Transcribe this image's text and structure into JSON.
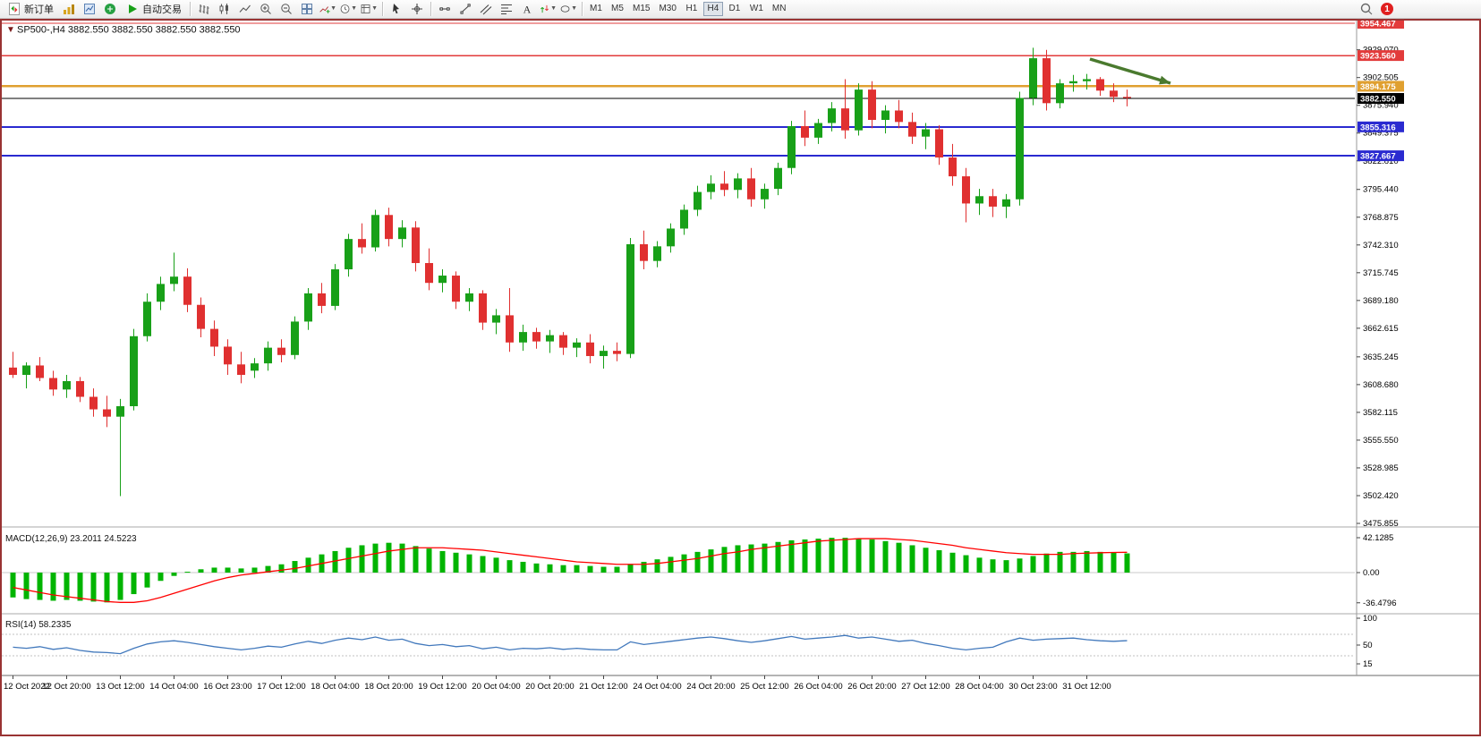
{
  "toolbar": {
    "new_order_label": "新订单",
    "auto_trading_label": "自动交易",
    "timeframes": [
      "M1",
      "M5",
      "M15",
      "M30",
      "H1",
      "H4",
      "D1",
      "W1",
      "MN"
    ],
    "active_timeframe": "H4",
    "notification_count": "1"
  },
  "chart": {
    "symbol": "SP500-",
    "period": "H4",
    "dropdown_glyph": "▼",
    "title_line": "SP500-,H4 3882.550 3882.550 3882.550 3882.550"
  },
  "chart_data": {
    "type": "candlestick",
    "symbol": "SP500-",
    "timeframe": "H4",
    "ohlc_current": {
      "open": 3882.55,
      "high": 3882.55,
      "low": 3882.55,
      "close": 3882.55
    },
    "colors": {
      "up": "#18a018",
      "down": "#e03030",
      "background": "#ffffff",
      "scale_text": "#000000"
    },
    "y_axis_labels": [
      3929.07,
      3902.505,
      3875.94,
      3849.375,
      3822.81,
      3795.44,
      3768.875,
      3742.31,
      3715.745,
      3689.18,
      3662.615,
      3635.245,
      3608.68,
      3582.115,
      3555.55,
      3528.985,
      3502.42,
      3475.855
    ],
    "horizontal_lines": [
      {
        "price": 3954.467,
        "color": "#e23b3b",
        "width": 1.4,
        "badge": true
      },
      {
        "price": 3923.56,
        "color": "#e23b3b",
        "width": 1.4,
        "badge": true
      },
      {
        "price": 3894.175,
        "color": "#e0a030",
        "width": 2.4,
        "badge": true
      },
      {
        "price": 3855.316,
        "color": "#2a2ad0",
        "width": 2,
        "badge": true
      },
      {
        "price": 3827.667,
        "color": "#2a2ad0",
        "width": 2,
        "badge": true
      },
      {
        "price": 3882.55,
        "color": "#000000",
        "width": 1.2,
        "badge": true,
        "current_price": true
      }
    ],
    "candles_ohlc": [
      [
        3625,
        3640,
        3615,
        3618
      ],
      [
        3618,
        3630,
        3605,
        3627
      ],
      [
        3627,
        3635,
        3612,
        3615
      ],
      [
        3615,
        3622,
        3598,
        3604
      ],
      [
        3604,
        3618,
        3596,
        3612
      ],
      [
        3612,
        3616,
        3592,
        3597
      ],
      [
        3597,
        3605,
        3578,
        3585
      ],
      [
        3585,
        3598,
        3568,
        3578
      ],
      [
        3578,
        3595,
        3502,
        3588
      ],
      [
        3588,
        3662,
        3584,
        3655
      ],
      [
        3655,
        3696,
        3650,
        3688
      ],
      [
        3688,
        3712,
        3680,
        3705
      ],
      [
        3705,
        3735,
        3698,
        3712
      ],
      [
        3712,
        3720,
        3678,
        3685
      ],
      [
        3685,
        3692,
        3654,
        3662
      ],
      [
        3662,
        3670,
        3636,
        3645
      ],
      [
        3645,
        3652,
        3618,
        3628
      ],
      [
        3628,
        3640,
        3610,
        3618
      ],
      [
        3622,
        3634,
        3615,
        3629
      ],
      [
        3629,
        3650,
        3622,
        3644
      ],
      [
        3644,
        3652,
        3630,
        3637
      ],
      [
        3637,
        3674,
        3633,
        3669
      ],
      [
        3669,
        3701,
        3661,
        3696
      ],
      [
        3696,
        3706,
        3677,
        3684
      ],
      [
        3684,
        3724,
        3680,
        3719
      ],
      [
        3719,
        3753,
        3712,
        3748
      ],
      [
        3748,
        3763,
        3734,
        3740
      ],
      [
        3740,
        3776,
        3736,
        3771
      ],
      [
        3771,
        3778,
        3741,
        3748
      ],
      [
        3748,
        3766,
        3740,
        3759
      ],
      [
        3759,
        3765,
        3717,
        3725
      ],
      [
        3725,
        3739,
        3699,
        3706
      ],
      [
        3706,
        3719,
        3697,
        3713
      ],
      [
        3713,
        3717,
        3681,
        3688
      ],
      [
        3688,
        3701,
        3679,
        3696
      ],
      [
        3696,
        3699,
        3661,
        3668
      ],
      [
        3668,
        3681,
        3657,
        3675
      ],
      [
        3675,
        3701,
        3640,
        3649
      ],
      [
        3649,
        3666,
        3641,
        3659
      ],
      [
        3659,
        3663,
        3643,
        3650
      ],
      [
        3650,
        3661,
        3639,
        3656
      ],
      [
        3656,
        3659,
        3637,
        3644
      ],
      [
        3644,
        3653,
        3635,
        3649
      ],
      [
        3649,
        3657,
        3629,
        3636
      ],
      [
        3636,
        3646,
        3624,
        3641
      ],
      [
        3641,
        3649,
        3631,
        3638
      ],
      [
        3638,
        3749,
        3634,
        3743
      ],
      [
        3743,
        3756,
        3719,
        3727
      ],
      [
        3727,
        3746,
        3721,
        3741
      ],
      [
        3741,
        3763,
        3735,
        3758
      ],
      [
        3758,
        3781,
        3752,
        3776
      ],
      [
        3776,
        3799,
        3770,
        3793
      ],
      [
        3793,
        3809,
        3786,
        3801
      ],
      [
        3801,
        3813,
        3789,
        3795
      ],
      [
        3795,
        3811,
        3787,
        3806
      ],
      [
        3806,
        3816,
        3779,
        3786
      ],
      [
        3786,
        3801,
        3777,
        3796
      ],
      [
        3796,
        3821,
        3790,
        3816
      ],
      [
        3816,
        3861,
        3810,
        3856
      ],
      [
        3856,
        3871,
        3837,
        3845
      ],
      [
        3845,
        3863,
        3839,
        3859
      ],
      [
        3859,
        3879,
        3851,
        3873
      ],
      [
        3873,
        3901,
        3844,
        3852
      ],
      [
        3852,
        3897,
        3847,
        3891
      ],
      [
        3891,
        3899,
        3854,
        3862
      ],
      [
        3862,
        3876,
        3849,
        3871
      ],
      [
        3871,
        3881,
        3854,
        3860
      ],
      [
        3860,
        3869,
        3839,
        3846
      ],
      [
        3846,
        3859,
        3834,
        3853
      ],
      [
        3853,
        3857,
        3819,
        3826
      ],
      [
        3826,
        3839,
        3799,
        3808
      ],
      [
        3808,
        3816,
        3764,
        3782
      ],
      [
        3782,
        3796,
        3771,
        3789
      ],
      [
        3789,
        3796,
        3769,
        3779
      ],
      [
        3779,
        3791,
        3768,
        3786
      ],
      [
        3786,
        3889,
        3780,
        3883
      ],
      [
        3883,
        3931,
        3876,
        3921
      ],
      [
        3921,
        3929,
        3871,
        3878
      ],
      [
        3878,
        3901,
        3873,
        3897
      ],
      [
        3897,
        3905,
        3889,
        3899
      ],
      [
        3899,
        3906,
        3891,
        3901
      ],
      [
        3901,
        3903,
        3885,
        3890
      ],
      [
        3890,
        3897,
        3879,
        3884
      ],
      [
        3884,
        3891,
        3875,
        3883
      ]
    ],
    "time_labels": [
      "12 Oct 2022",
      "12 Oct 20:00",
      "13 Oct 12:00",
      "14 Oct 04:00",
      "16 Oct 23:00",
      "17 Oct 12:00",
      "18 Oct 04:00",
      "18 Oct 20:00",
      "19 Oct 12:00",
      "20 Oct 04:00",
      "20 Oct 20:00",
      "21 Oct 12:00",
      "24 Oct 04:00",
      "24 Oct 20:00",
      "25 Oct 12:00",
      "26 Oct 04:00",
      "26 Oct 20:00",
      "27 Oct 12:00",
      "28 Oct 04:00",
      "30 Oct 23:00",
      "31 Oct 12:00"
    ],
    "time_label_every": 4,
    "indicators": {
      "macd": {
        "label_full": "MACD(12,26,9) 23.2011 24.5223",
        "name": "MACD",
        "params": "(12,26,9)",
        "value_main": "23.2011",
        "value_signal": "24.5223",
        "axis": [
          {
            "text": "42.1285",
            "value": 42.1285
          },
          {
            "text": "0.00",
            "value": 0
          },
          {
            "text": "-36.4796",
            "value": -36.4796
          }
        ],
        "colors": {
          "histogram": "#00b400",
          "signal": "#ff0000"
        },
        "histogram": [
          -30,
          -32,
          -33,
          -34,
          -33,
          -34,
          -35,
          -36,
          -33,
          -26,
          -18,
          -10,
          -4,
          1,
          4,
          6,
          6,
          5,
          6,
          8,
          10,
          14,
          18,
          22,
          26,
          30,
          33,
          35,
          36,
          35,
          32,
          29,
          26,
          24,
          22,
          20,
          18,
          15,
          13,
          11,
          10,
          9,
          9,
          8,
          7,
          7,
          10,
          13,
          16,
          19,
          22,
          25,
          28,
          31,
          33,
          34,
          35,
          37,
          39,
          40,
          41,
          42,
          42,
          41,
          40,
          38,
          36,
          33,
          30,
          27,
          24,
          21,
          18,
          16,
          15,
          17,
          20,
          23,
          25,
          25,
          26,
          25,
          24,
          23.2
        ],
        "signal": [
          -18,
          -21,
          -24,
          -27,
          -29,
          -31,
          -33,
          -35,
          -36,
          -36,
          -34,
          -30,
          -25,
          -20,
          -15,
          -10,
          -6,
          -3,
          -1,
          1,
          3,
          5,
          8,
          11,
          14,
          17,
          20,
          23,
          26,
          28,
          30,
          30,
          30,
          29,
          28,
          27,
          25,
          23,
          21,
          19,
          17,
          15,
          13,
          12,
          11,
          10,
          10,
          10,
          11,
          13,
          15,
          17,
          20,
          23,
          25,
          28,
          30,
          32,
          34,
          36,
          38,
          39,
          40,
          41,
          41,
          41,
          40,
          39,
          37,
          35,
          33,
          30,
          28,
          26,
          24,
          23,
          22,
          22,
          22,
          23,
          23.5,
          24,
          24.3,
          24.5
        ]
      },
      "rsi": {
        "label_full": "RSI(14) 58.2335",
        "name": "RSI",
        "params": "(14)",
        "value": "58.2335",
        "axis": [
          {
            "text": "100",
            "value": 100
          },
          {
            "text": "50",
            "value": 50
          },
          {
            "text": "15",
            "value": 15
          }
        ],
        "levels": [
          70,
          30
        ],
        "color": "#4178bc",
        "values": [
          46,
          44,
          47,
          42,
          45,
          40,
          37,
          36,
          34,
          44,
          52,
          56,
          58,
          55,
          51,
          47,
          44,
          41,
          44,
          48,
          46,
          52,
          57,
          53,
          59,
          63,
          60,
          65,
          59,
          61,
          53,
          49,
          51,
          47,
          49,
          43,
          46,
          41,
          44,
          43,
          45,
          42,
          44,
          42,
          41,
          41,
          56,
          51,
          54,
          57,
          60,
          63,
          65,
          62,
          58,
          55,
          58,
          62,
          66,
          61,
          63,
          65,
          68,
          63,
          65,
          61,
          57,
          59,
          53,
          49,
          44,
          41,
          44,
          46,
          56,
          63,
          59,
          61,
          62,
          63,
          60,
          58,
          57,
          58.2
        ]
      }
    },
    "annotations": [
      {
        "type": "arrow",
        "from": [
          1216,
          66
        ],
        "to": [
          1306,
          93
        ],
        "color": "#4a7a2e",
        "width": 3.5
      }
    ]
  }
}
